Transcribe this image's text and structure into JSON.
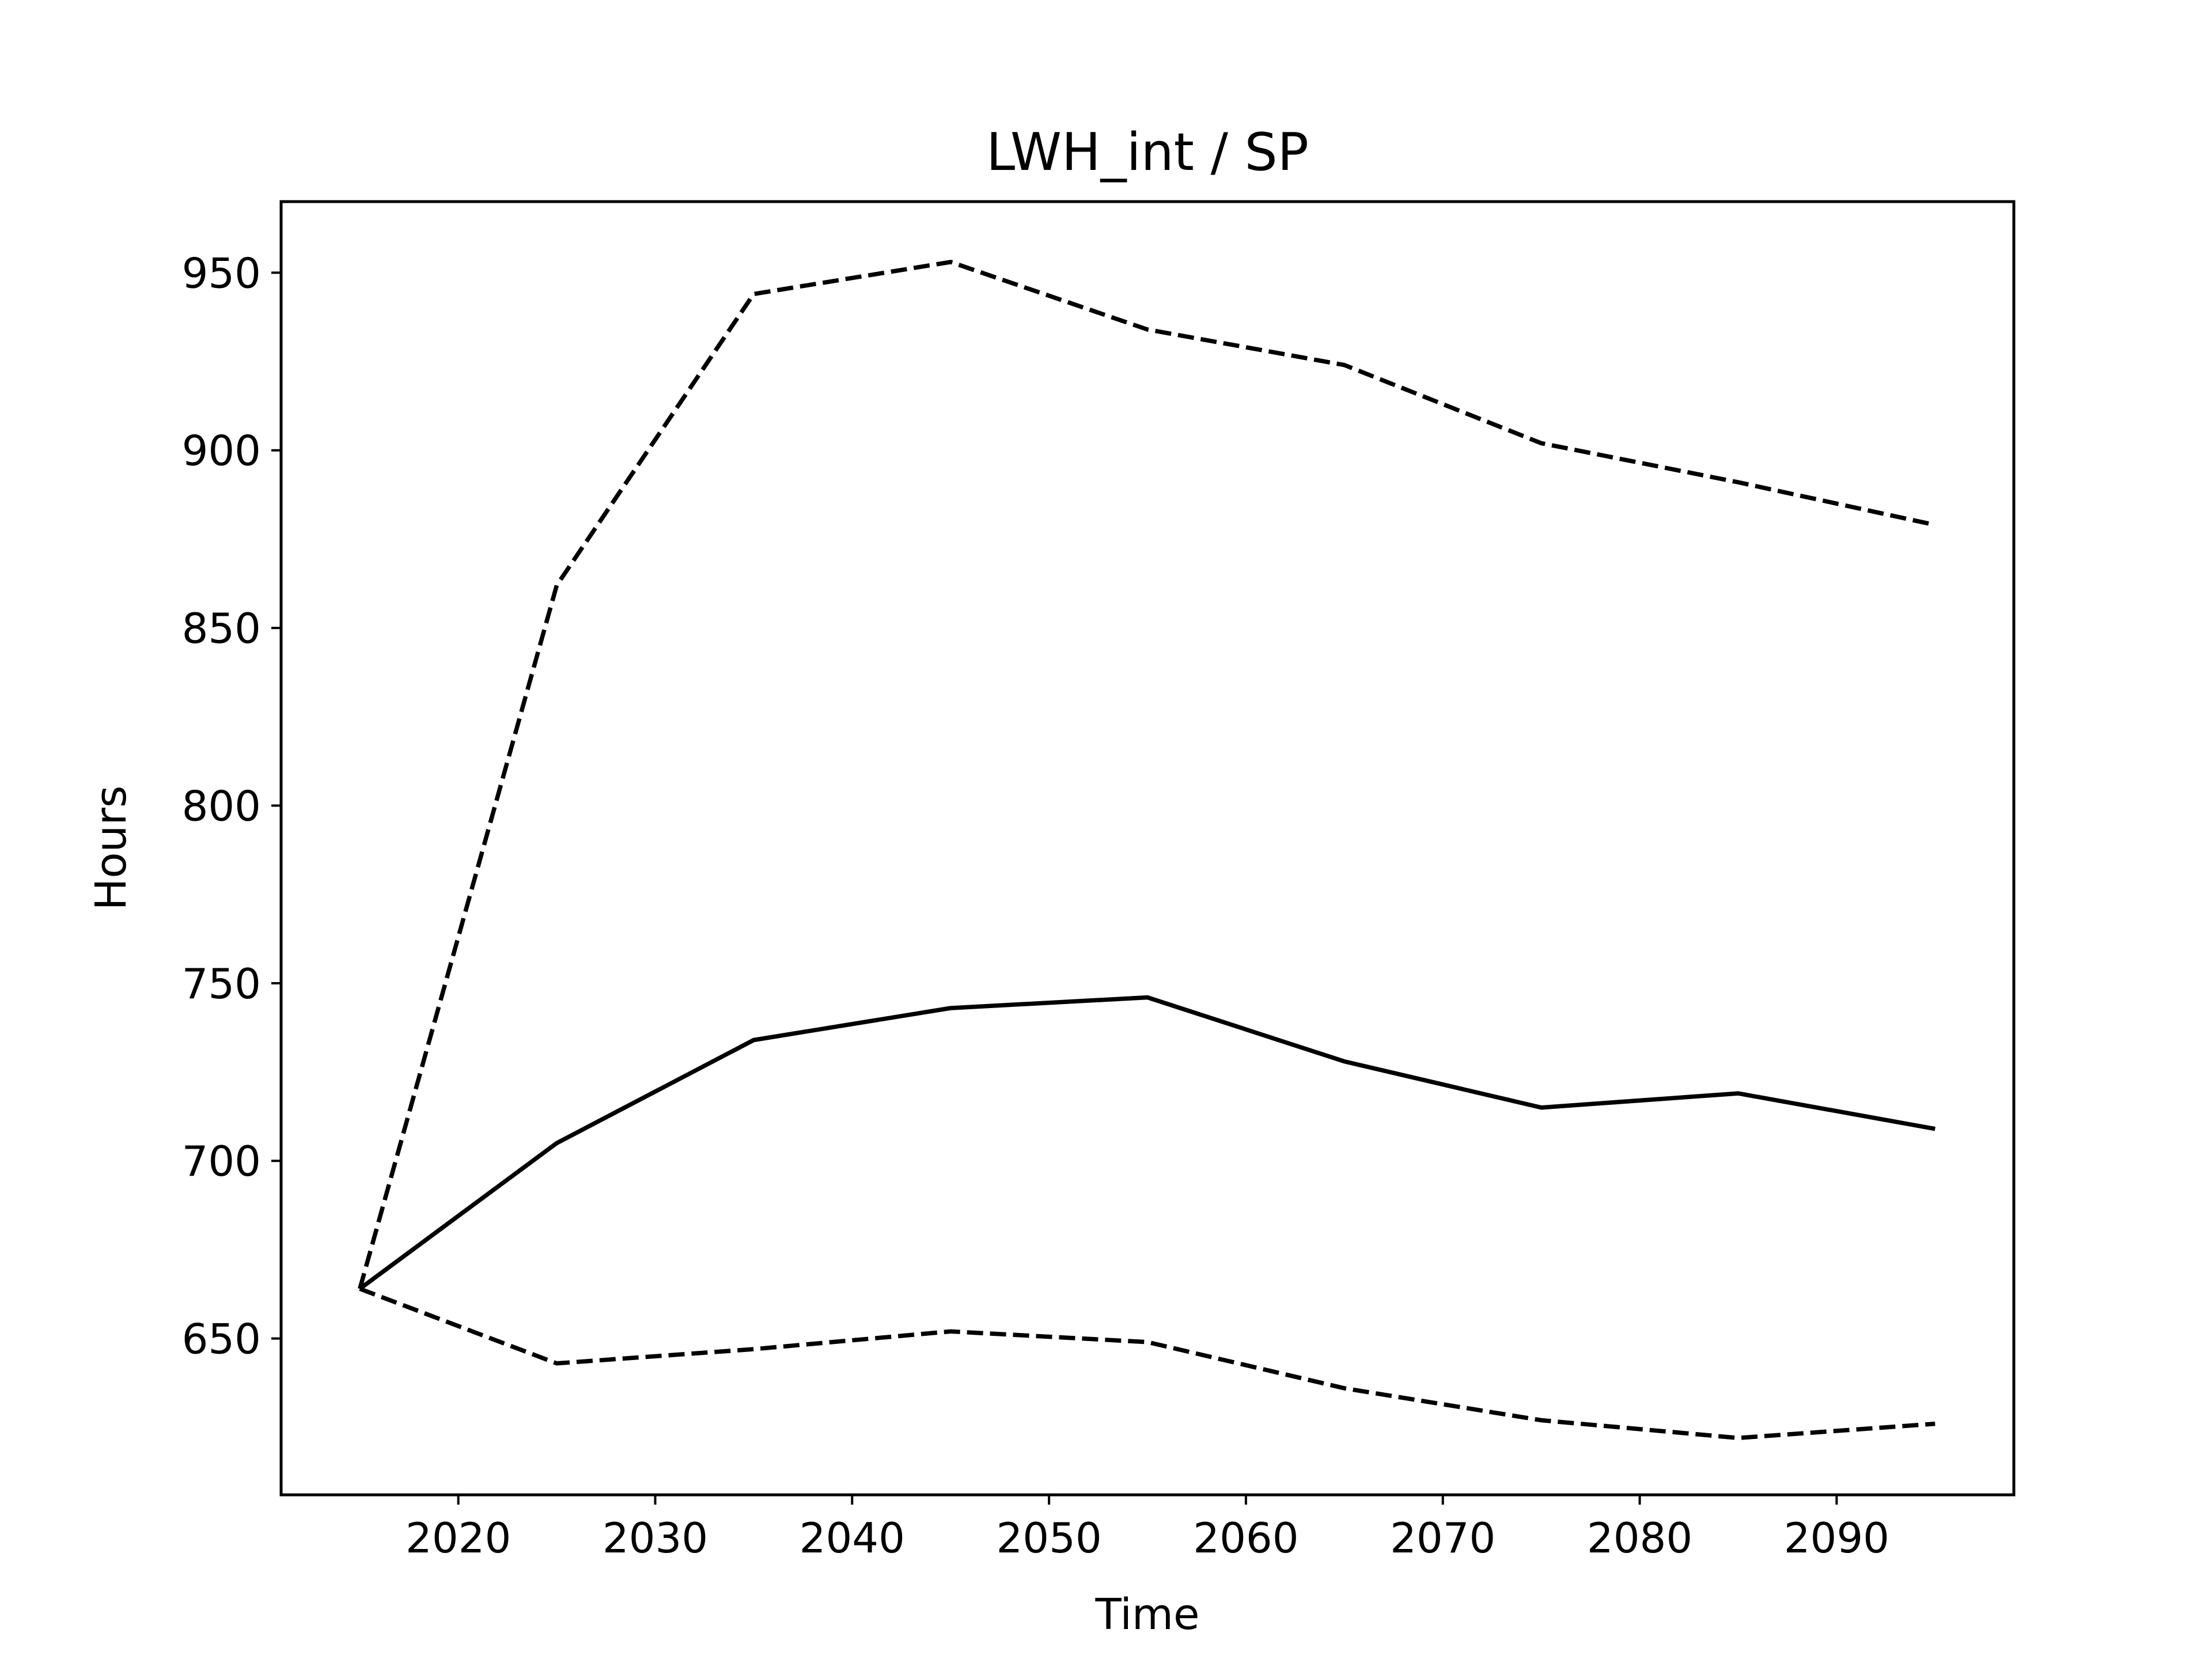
{
  "chart_data": {
    "type": "line",
    "title": "LWH_int / SP",
    "xlabel": "Time",
    "ylabel": "Hours",
    "xlim": [
      2011,
      2099
    ],
    "ylim": [
      606,
      970
    ],
    "xticks": [
      2020,
      2030,
      2040,
      2050,
      2060,
      2070,
      2080,
      2090
    ],
    "yticks": [
      650,
      700,
      750,
      800,
      850,
      900,
      950
    ],
    "grid": false,
    "x": [
      2015,
      2025,
      2035,
      2045,
      2055,
      2065,
      2075,
      2085,
      2095
    ],
    "series": [
      {
        "style": "solid",
        "color": "#000000",
        "values": [
          664,
          705,
          734,
          743,
          746,
          728,
          715,
          719,
          709
        ]
      },
      {
        "style": "dashed",
        "color": "#000000",
        "values": [
          664,
          862,
          944,
          953,
          934,
          924,
          902,
          891,
          879
        ]
      },
      {
        "style": "dashed",
        "color": "#000000",
        "values": [
          664,
          643,
          647,
          652,
          649,
          636,
          627,
          622,
          626
        ]
      }
    ]
  }
}
